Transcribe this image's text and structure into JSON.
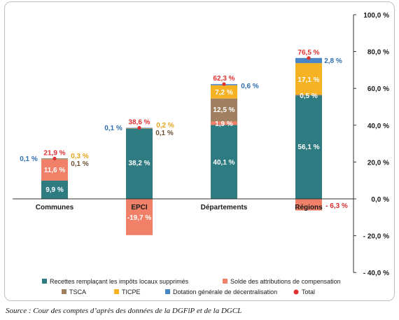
{
  "chart_data": {
    "type": "bar",
    "stacked": true,
    "categories": [
      "Communes",
      "EPCI",
      "Départements",
      "Régions"
    ],
    "ylim": [
      -40,
      100
    ],
    "yticks": [
      "100,0 %",
      "80,0 %",
      "60,0 %",
      "40,0 %",
      "20,0 %",
      "0,0 %",
      "- 20,0 %",
      "- 40,0 %"
    ],
    "series": [
      {
        "name": "Recettes remplaçant les impôts locaux supprimés",
        "color": "#2e7b82",
        "values": [
          9.9,
          38.2,
          40.1,
          56.1
        ],
        "labels": [
          "9,9 %",
          "38,2 %",
          "40,1 %",
          "56,1 %"
        ]
      },
      {
        "name": "Solde des attributions de compensation",
        "color": "#f08068",
        "values": [
          11.6,
          -19.7,
          1.9,
          -6.3
        ],
        "labels": [
          "11,6 %",
          "-19,7 %",
          "1,9 %",
          "- 6,3 %"
        ]
      },
      {
        "name": "TSCA",
        "color": "#a08060",
        "values": [
          0.1,
          0.1,
          12.5,
          0.5
        ],
        "labels": [
          "0,1 %",
          "0,1 %",
          "12,5 %",
          "0,5 %"
        ]
      },
      {
        "name": "TICPE",
        "color": "#f5b324",
        "values": [
          0.3,
          0.2,
          7.2,
          17.1
        ],
        "labels": [
          "0,3 %",
          "0,2 %",
          "7,2 %",
          "17,1 %"
        ]
      },
      {
        "name": "Dotation générale de décentralisation",
        "color": "#4a86c5",
        "values": [
          0.1,
          0.1,
          0.6,
          2.8
        ],
        "labels": [
          "0,1 %",
          "0,1 %",
          "0,6 %",
          "2,8 %"
        ]
      }
    ],
    "total": {
      "name": "Total",
      "color": "#e03030",
      "values": [
        21.9,
        38.6,
        62.3,
        76.5
      ],
      "labels": [
        "21,9 %",
        "38,6 %",
        "62,3 %",
        "76,5 %"
      ]
    },
    "source": "Source : Cour des comptes d’après des données de la DGFiP et de la DGCL"
  }
}
